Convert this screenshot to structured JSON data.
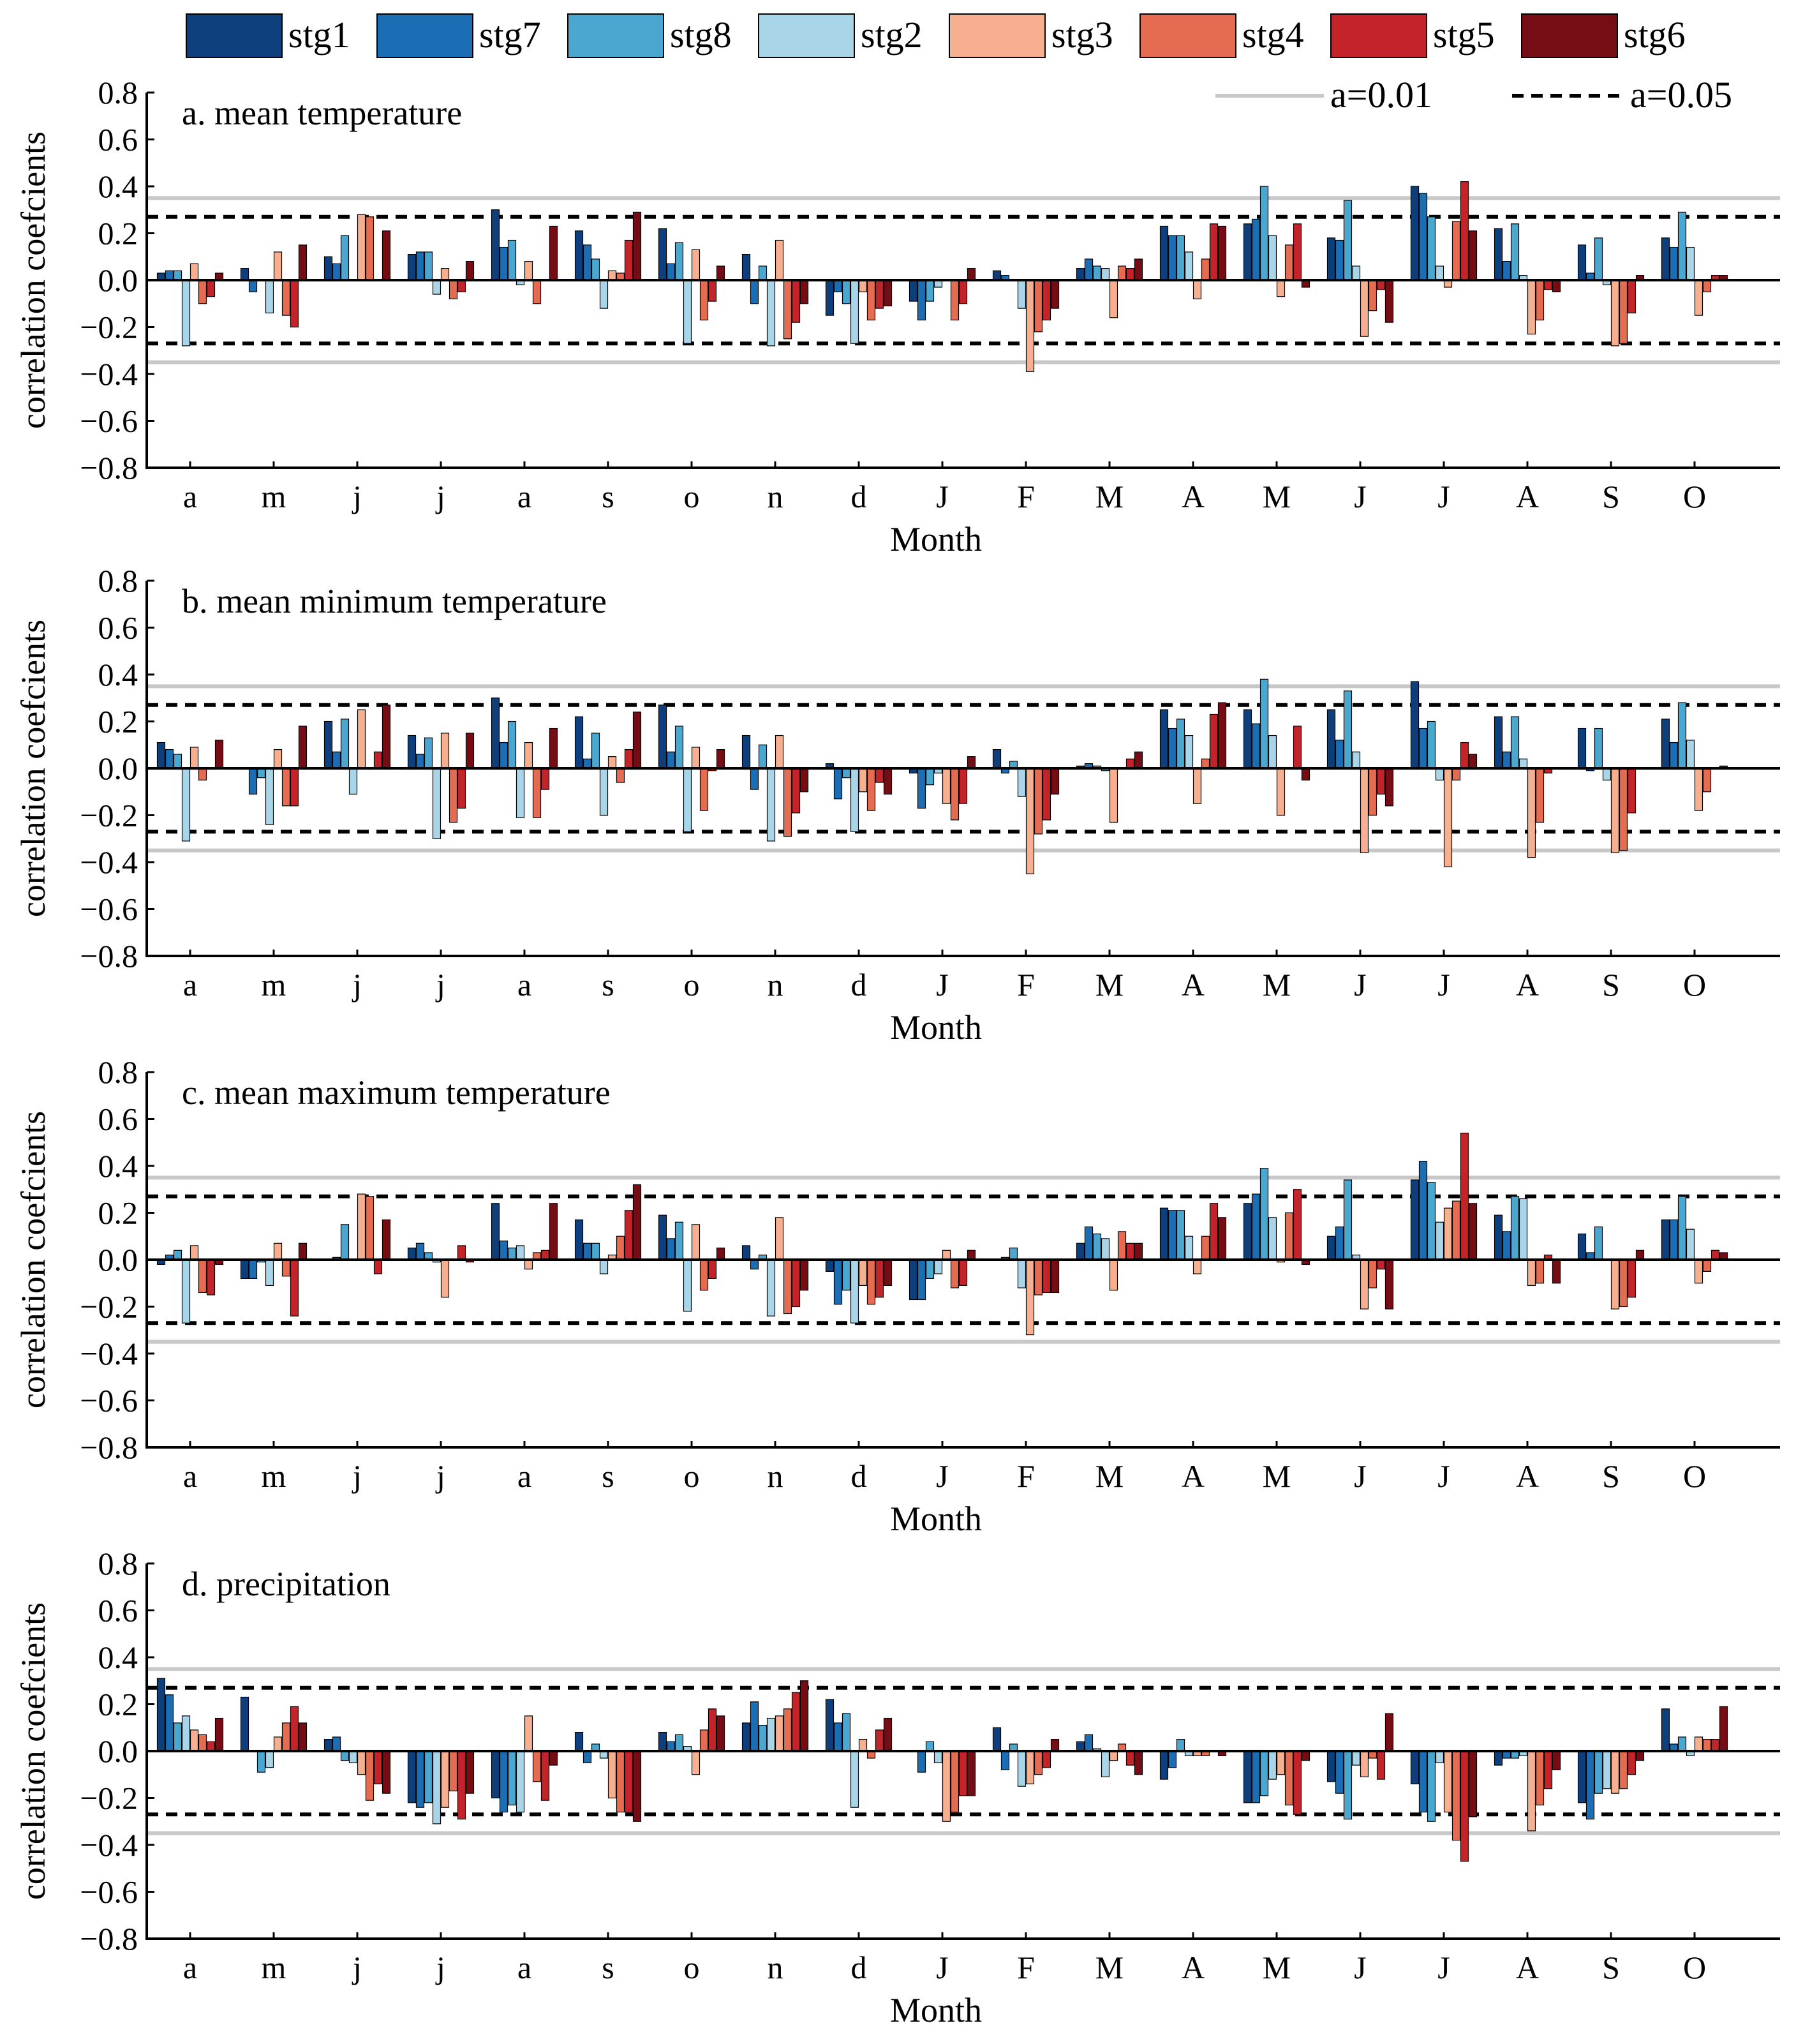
{
  "figure_title": "",
  "legend": {
    "stages": [
      {
        "name": "stg1",
        "color": "#0e3f7d"
      },
      {
        "name": "stg7",
        "color": "#1b6eb3"
      },
      {
        "name": "stg8",
        "color": "#4aa7cf"
      },
      {
        "name": "stg2",
        "color": "#a9d5e9"
      },
      {
        "name": "stg3",
        "color": "#f6b08f"
      },
      {
        "name": "stg4",
        "color": "#e56c50"
      },
      {
        "name": "stg5",
        "color": "#c4232a"
      },
      {
        "name": "stg6",
        "color": "#760c14"
      }
    ],
    "thresholds": [
      {
        "name": "a=0.01",
        "value": 0.35,
        "style": "solid",
        "color": "#c8c8c8"
      },
      {
        "name": "a=0.05",
        "value": 0.27,
        "style": "dashed",
        "color": "#000000"
      }
    ]
  },
  "chart_data": [
    {
      "type": "bar",
      "title": "a. mean temperature",
      "xlabel": "Month",
      "ylabel": "correlation coefcients",
      "ylim": [
        -0.8,
        0.8
      ],
      "yticks": [
        "0.8",
        "0.6",
        "0.4",
        "0.2",
        "0.0",
        "−0.2",
        "−0.4",
        "−0.6",
        "−0.8"
      ],
      "ytick_values": [
        0.8,
        0.6,
        0.4,
        0.2,
        0.0,
        -0.2,
        -0.4,
        -0.6,
        -0.8
      ],
      "categories": [
        "a",
        "m",
        "j",
        "j",
        "a",
        "s",
        "o",
        "n",
        "d",
        "J",
        "F",
        "M",
        "A",
        "M",
        "J",
        "J",
        "A",
        "S",
        "O"
      ],
      "series": [
        {
          "name": "stg1",
          "values": [
            0.03,
            0.05,
            0.1,
            0.11,
            0.3,
            0.21,
            0.22,
            0.11,
            -0.15,
            -0.09,
            0.04,
            0.05,
            0.23,
            0.24,
            0.18,
            0.4,
            0.22,
            0.15,
            0.18
          ]
        },
        {
          "name": "stg7",
          "values": [
            0.04,
            -0.05,
            0.07,
            0.12,
            0.14,
            0.15,
            0.07,
            -0.1,
            -0.05,
            -0.17,
            0.02,
            0.09,
            0.19,
            0.26,
            0.17,
            0.37,
            0.08,
            0.03,
            0.14
          ]
        },
        {
          "name": "stg8",
          "values": [
            0.04,
            0.0,
            0.19,
            0.12,
            0.17,
            0.09,
            0.16,
            0.06,
            -0.1,
            -0.09,
            0.0,
            0.06,
            0.19,
            0.4,
            0.34,
            0.27,
            0.24,
            0.18,
            0.29
          ]
        },
        {
          "name": "stg2",
          "values": [
            -0.28,
            -0.14,
            0.0,
            -0.06,
            -0.02,
            -0.12,
            -0.27,
            -0.28,
            -0.27,
            -0.03,
            -0.12,
            0.05,
            0.12,
            0.19,
            0.06,
            0.06,
            0.02,
            -0.02,
            0.14
          ]
        },
        {
          "name": "stg3",
          "values": [
            0.07,
            0.12,
            0.28,
            0.05,
            0.08,
            0.04,
            0.13,
            0.17,
            -0.05,
            0.0,
            -0.39,
            -0.16,
            -0.08,
            -0.07,
            -0.24,
            -0.03,
            -0.23,
            -0.28,
            -0.15
          ]
        },
        {
          "name": "stg4",
          "values": [
            -0.1,
            -0.15,
            0.27,
            -0.08,
            -0.1,
            0.03,
            -0.17,
            -0.25,
            -0.17,
            -0.17,
            -0.22,
            0.06,
            0.09,
            0.15,
            -0.13,
            0.25,
            -0.17,
            -0.27,
            -0.05
          ]
        },
        {
          "name": "stg5",
          "values": [
            -0.07,
            -0.2,
            0.0,
            -0.05,
            0.0,
            0.17,
            -0.09,
            -0.18,
            -0.12,
            -0.1,
            -0.17,
            0.05,
            0.24,
            0.24,
            -0.04,
            0.42,
            -0.04,
            -0.14,
            0.02
          ]
        },
        {
          "name": "stg6",
          "values": [
            0.03,
            0.15,
            0.21,
            0.08,
            0.23,
            0.29,
            0.06,
            -0.1,
            -0.11,
            0.05,
            -0.12,
            0.09,
            0.23,
            -0.03,
            -0.18,
            0.21,
            -0.05,
            0.02,
            0.02
          ]
        }
      ]
    },
    {
      "type": "bar",
      "title": "b. mean minimum temperature",
      "xlabel": "Month",
      "ylabel": "correlation coefcients",
      "ylim": [
        -0.8,
        0.8
      ],
      "yticks": [
        "0.8",
        "0.6",
        "0.4",
        "0.2",
        "0.0",
        "−0.2",
        "−0.4",
        "−0.6",
        "−0.8"
      ],
      "ytick_values": [
        0.8,
        0.6,
        0.4,
        0.2,
        0.0,
        -0.2,
        -0.4,
        -0.6,
        -0.8
      ],
      "categories": [
        "a",
        "m",
        "j",
        "j",
        "a",
        "s",
        "o",
        "n",
        "d",
        "J",
        "F",
        "M",
        "A",
        "M",
        "J",
        "J",
        "A",
        "S",
        "O"
      ],
      "series": [
        {
          "name": "stg1",
          "values": [
            0.11,
            0.0,
            0.2,
            0.14,
            0.3,
            0.22,
            0.27,
            0.14,
            0.02,
            -0.02,
            0.08,
            0.01,
            0.25,
            0.25,
            0.25,
            0.37,
            0.22,
            0.17,
            0.21
          ]
        },
        {
          "name": "stg7",
          "values": [
            0.08,
            -0.11,
            0.07,
            0.06,
            0.11,
            0.04,
            0.07,
            -0.09,
            -0.13,
            -0.17,
            -0.02,
            0.02,
            0.17,
            0.19,
            0.12,
            0.17,
            0.07,
            -0.01,
            0.11
          ]
        },
        {
          "name": "stg8",
          "values": [
            0.06,
            -0.04,
            0.21,
            0.13,
            0.2,
            0.15,
            0.18,
            0.1,
            -0.04,
            -0.07,
            0.03,
            0.01,
            0.21,
            0.38,
            0.33,
            0.2,
            0.22,
            0.17,
            0.28
          ]
        },
        {
          "name": "stg2",
          "values": [
            -0.31,
            -0.24,
            -0.11,
            -0.3,
            -0.21,
            -0.2,
            -0.27,
            -0.31,
            -0.27,
            -0.02,
            -0.12,
            -0.01,
            0.14,
            0.14,
            0.07,
            -0.05,
            0.04,
            -0.05,
            0.12
          ]
        },
        {
          "name": "stg3",
          "values": [
            0.09,
            0.08,
            0.25,
            0.15,
            0.11,
            0.05,
            0.09,
            0.14,
            -0.1,
            -0.15,
            -0.45,
            -0.23,
            -0.15,
            -0.2,
            -0.36,
            -0.42,
            -0.38,
            -0.36,
            -0.18
          ]
        },
        {
          "name": "stg4",
          "values": [
            -0.05,
            -0.16,
            0.0,
            -0.23,
            -0.21,
            -0.06,
            -0.18,
            -0.29,
            -0.18,
            -0.22,
            -0.28,
            0.0,
            0.04,
            0.0,
            -0.2,
            -0.05,
            -0.23,
            -0.35,
            -0.1
          ]
        },
        {
          "name": "stg5",
          "values": [
            0.0,
            -0.16,
            0.07,
            -0.17,
            -0.09,
            0.08,
            -0.01,
            -0.19,
            -0.06,
            -0.15,
            -0.22,
            0.04,
            0.23,
            0.18,
            -0.11,
            0.11,
            -0.02,
            -0.19,
            0.0
          ]
        },
        {
          "name": "stg6",
          "values": [
            0.12,
            0.18,
            0.27,
            0.15,
            0.17,
            0.24,
            0.08,
            -0.1,
            -0.11,
            0.05,
            -0.11,
            0.07,
            0.28,
            -0.05,
            -0.16,
            0.06,
            0.0,
            0.0,
            0.01
          ]
        }
      ]
    },
    {
      "type": "bar",
      "title": "c. mean maximum temperature",
      "xlabel": "Month",
      "ylabel": "correlation coefcients",
      "ylim": [
        -0.8,
        0.8
      ],
      "yticks": [
        "0.8",
        "0.6",
        "0.4",
        "0.2",
        "0.0",
        "−0.2",
        "−0.4",
        "−0.6",
        "−0.8"
      ],
      "ytick_values": [
        0.8,
        0.6,
        0.4,
        0.2,
        0.0,
        -0.2,
        -0.4,
        -0.6,
        -0.8
      ],
      "categories": [
        "a",
        "m",
        "j",
        "j",
        "a",
        "s",
        "o",
        "n",
        "d",
        "J",
        "F",
        "M",
        "A",
        "M",
        "J",
        "J",
        "A",
        "S",
        "O"
      ],
      "series": [
        {
          "name": "stg1",
          "values": [
            -0.02,
            -0.08,
            0.0,
            0.05,
            0.24,
            0.17,
            0.19,
            0.06,
            -0.05,
            -0.17,
            0.0,
            0.07,
            0.22,
            0.24,
            0.1,
            0.34,
            0.19,
            0.11,
            0.17
          ]
        },
        {
          "name": "stg7",
          "values": [
            0.02,
            -0.08,
            0.01,
            0.07,
            0.08,
            0.07,
            0.09,
            -0.04,
            -0.19,
            -0.17,
            0.01,
            0.14,
            0.21,
            0.28,
            0.14,
            0.42,
            0.12,
            0.03,
            0.17
          ]
        },
        {
          "name": "stg8",
          "values": [
            0.04,
            -0.01,
            0.15,
            0.03,
            0.05,
            0.07,
            0.16,
            0.02,
            -0.13,
            -0.08,
            0.05,
            0.11,
            0.21,
            0.39,
            0.34,
            0.33,
            0.27,
            0.14,
            0.27
          ]
        },
        {
          "name": "stg2",
          "values": [
            -0.27,
            -0.11,
            0.0,
            -0.01,
            0.06,
            -0.06,
            -0.22,
            -0.24,
            -0.27,
            -0.06,
            -0.12,
            0.09,
            0.1,
            0.18,
            0.02,
            0.16,
            0.26,
            0.0,
            0.13
          ]
        },
        {
          "name": "stg3",
          "values": [
            0.06,
            0.07,
            0.28,
            -0.16,
            -0.04,
            0.02,
            0.15,
            0.18,
            -0.11,
            0.04,
            -0.32,
            -0.13,
            -0.06,
            -0.01,
            -0.21,
            0.22,
            -0.11,
            -0.21,
            -0.1
          ]
        },
        {
          "name": "stg4",
          "values": [
            -0.14,
            -0.07,
            0.27,
            0.0,
            0.03,
            0.1,
            -0.13,
            -0.23,
            -0.19,
            -0.12,
            -0.15,
            0.12,
            0.1,
            0.2,
            -0.12,
            0.25,
            -0.1,
            -0.2,
            -0.05
          ]
        },
        {
          "name": "stg5",
          "values": [
            -0.15,
            -0.24,
            -0.06,
            0.06,
            0.04,
            0.21,
            -0.08,
            -0.2,
            -0.16,
            -0.11,
            -0.14,
            0.07,
            0.24,
            0.3,
            -0.04,
            0.54,
            0.02,
            -0.16,
            0.04
          ]
        },
        {
          "name": "stg6",
          "values": [
            -0.02,
            0.07,
            0.17,
            -0.01,
            0.24,
            0.32,
            0.05,
            -0.13,
            -0.11,
            0.04,
            -0.14,
            0.07,
            0.18,
            -0.02,
            -0.21,
            0.24,
            -0.1,
            0.04,
            0.03
          ]
        }
      ]
    },
    {
      "type": "bar",
      "title": "d. precipitation",
      "xlabel": "Month",
      "ylabel": "correlation coefcients",
      "ylim": [
        -0.8,
        0.8
      ],
      "yticks": [
        "0.8",
        "0.6",
        "0.4",
        "0.2",
        "0.0",
        "−0.2",
        "−0.4",
        "−0.6",
        "−0.8"
      ],
      "ytick_values": [
        0.8,
        0.6,
        0.4,
        0.2,
        0.0,
        -0.2,
        -0.4,
        -0.6,
        -0.8
      ],
      "categories": [
        "a",
        "m",
        "j",
        "j",
        "a",
        "s",
        "o",
        "n",
        "d",
        "J",
        "F",
        "M",
        "A",
        "M",
        "J",
        "J",
        "A",
        "S",
        "O"
      ],
      "series": [
        {
          "name": "stg1",
          "values": [
            0.31,
            0.23,
            0.05,
            -0.22,
            -0.2,
            0.08,
            0.08,
            0.12,
            0.22,
            0.0,
            0.1,
            0.04,
            -0.12,
            -0.22,
            -0.13,
            -0.14,
            -0.06,
            -0.22,
            0.18
          ]
        },
        {
          "name": "stg7",
          "values": [
            0.24,
            0.0,
            0.06,
            -0.24,
            -0.26,
            -0.05,
            0.04,
            0.21,
            0.12,
            -0.09,
            -0.08,
            0.07,
            -0.07,
            -0.22,
            -0.18,
            -0.26,
            -0.03,
            -0.29,
            0.03
          ]
        },
        {
          "name": "stg8",
          "values": [
            0.12,
            -0.09,
            -0.04,
            -0.22,
            -0.23,
            0.03,
            0.07,
            0.11,
            0.16,
            0.04,
            0.03,
            0.01,
            0.05,
            -0.19,
            -0.29,
            -0.3,
            -0.03,
            -0.18,
            0.06
          ]
        },
        {
          "name": "stg2",
          "values": [
            0.15,
            -0.07,
            -0.05,
            -0.31,
            -0.26,
            -0.03,
            0.02,
            0.14,
            -0.24,
            -0.05,
            -0.15,
            -0.11,
            -0.02,
            -0.12,
            -0.06,
            -0.05,
            -0.02,
            -0.16,
            -0.02
          ]
        },
        {
          "name": "stg3",
          "values": [
            0.09,
            0.06,
            -0.1,
            -0.24,
            0.15,
            -0.2,
            -0.1,
            0.15,
            0.05,
            -0.3,
            -0.14,
            -0.04,
            -0.02,
            -0.1,
            -0.11,
            -0.26,
            -0.34,
            -0.18,
            0.06
          ]
        },
        {
          "name": "stg4",
          "values": [
            0.07,
            0.12,
            -0.21,
            -0.17,
            -0.13,
            -0.26,
            0.09,
            0.18,
            -0.03,
            -0.26,
            -0.1,
            0.03,
            -0.02,
            -0.23,
            -0.03,
            -0.38,
            -0.23,
            -0.16,
            0.05
          ]
        },
        {
          "name": "stg5",
          "values": [
            0.04,
            0.19,
            -0.14,
            -0.29,
            -0.21,
            -0.26,
            0.18,
            0.25,
            0.09,
            -0.19,
            -0.07,
            -0.06,
            0.0,
            -0.27,
            -0.12,
            -0.47,
            -0.16,
            -0.1,
            0.05
          ]
        },
        {
          "name": "stg6",
          "values": [
            0.14,
            0.12,
            -0.18,
            -0.18,
            -0.06,
            -0.3,
            0.15,
            0.3,
            0.14,
            -0.19,
            0.05,
            -0.1,
            -0.02,
            -0.04,
            0.16,
            -0.28,
            -0.08,
            -0.04,
            0.19
          ]
        }
      ]
    }
  ]
}
